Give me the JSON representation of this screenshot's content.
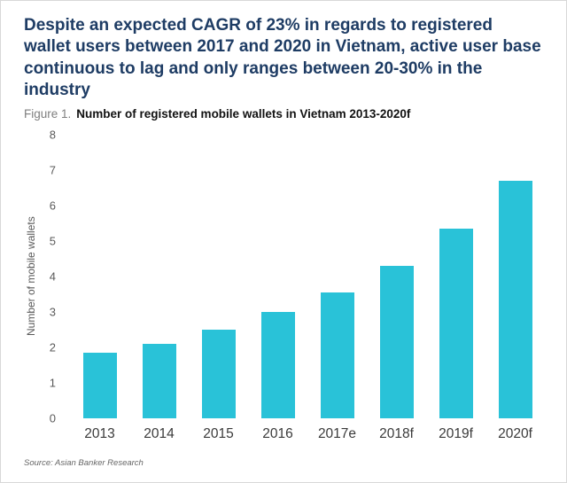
{
  "headline": "Despite an expected CAGR of 23% in regards to registered wallet users between 2017 and 2020 in Vietnam, active user base continuous to lag and only ranges between 20-30% in the industry",
  "figure": {
    "label": "Figure 1.",
    "caption": "Number of registered mobile wallets in Vietnam 2013-2020f"
  },
  "source_note": "Source: Asian Banker Research",
  "colors": {
    "bar": "#29c2d8",
    "title": "#1e3c64"
  },
  "chart_data": {
    "type": "bar",
    "categories": [
      "2013",
      "2014",
      "2015",
      "2016",
      "2017e",
      "2018f",
      "2019f",
      "2020f"
    ],
    "values": [
      1.85,
      2.1,
      2.5,
      3.0,
      3.55,
      4.3,
      5.35,
      6.7
    ],
    "title": "Number of registered mobile wallets in Vietnam 2013-2020f",
    "xlabel": "",
    "ylabel": "Number of mobile wallets",
    "ylim": [
      0,
      8
    ],
    "yticks": [
      0,
      1,
      2,
      3,
      4,
      5,
      6,
      7,
      8
    ],
    "grid": false,
    "legend": false
  }
}
